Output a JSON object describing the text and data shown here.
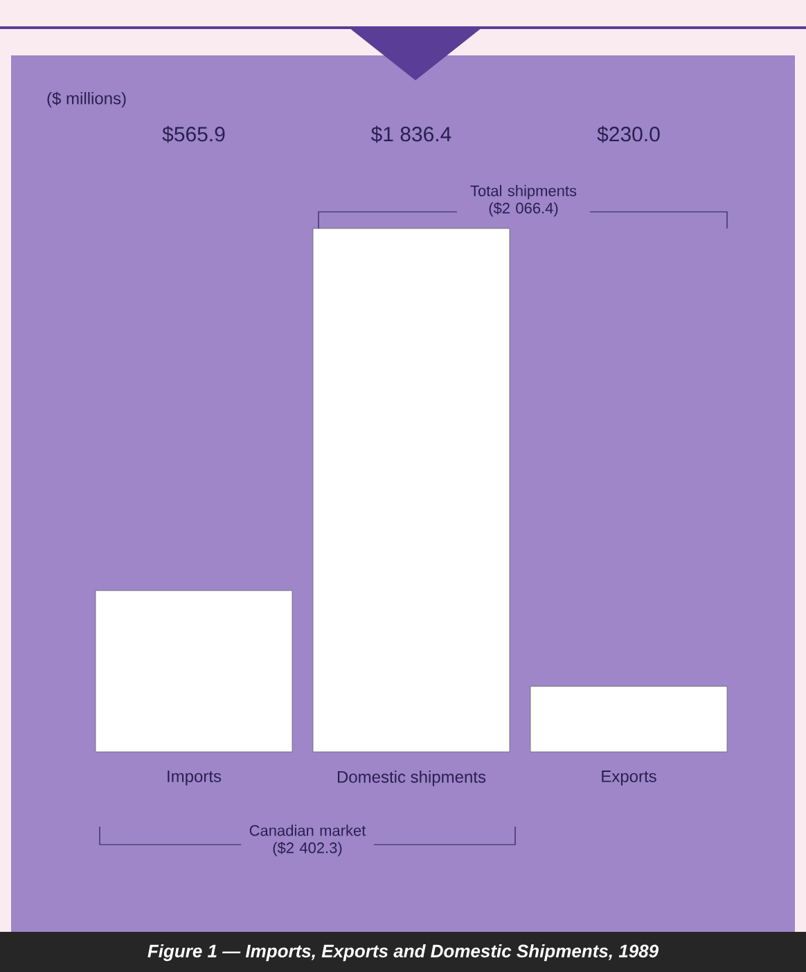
{
  "chart_data": {
    "type": "bar",
    "title": "Figure 1 — Imports, Exports and Domestic Shipments, 1989",
    "categories": [
      "Imports",
      "Domestic shipments",
      "Exports"
    ],
    "values": [
      565.9,
      1836.4,
      230.0
    ],
    "value_labels": [
      "$565.9",
      "$1 836.4",
      "$230.0"
    ],
    "color": "#ffffff",
    "annotations": [
      "Total shipments ($2 066.4)",
      "Canadian market ($2 402.3)",
      "($ millions)"
    ]
  }
}
